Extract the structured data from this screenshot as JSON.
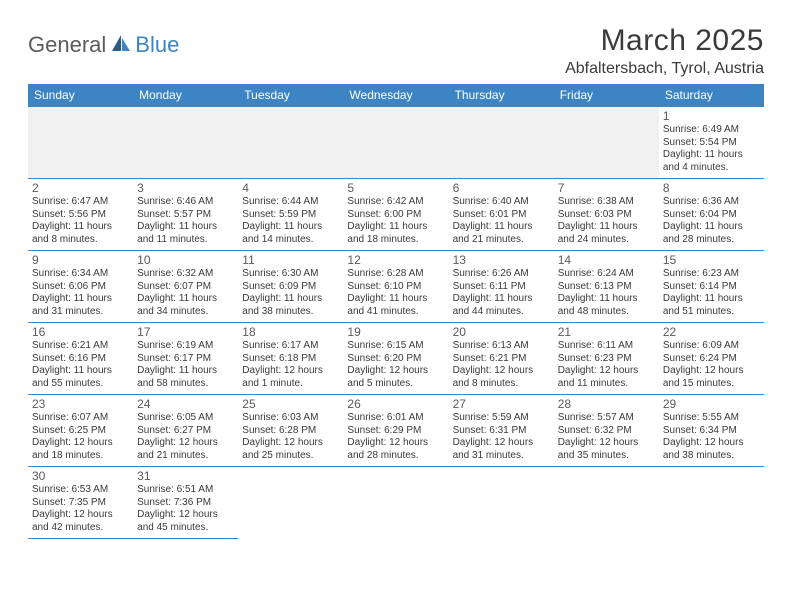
{
  "logo": {
    "text_general": "General",
    "text_blue": "Blue"
  },
  "title": "March 2025",
  "location": "Abfaltersbach, Tyrol, Austria",
  "weekday_headers": [
    "Sunday",
    "Monday",
    "Tuesday",
    "Wednesday",
    "Thursday",
    "Friday",
    "Saturday"
  ],
  "colors": {
    "header_bg": "#3d84c4",
    "header_fg": "#ffffff",
    "cell_border": "#3d84c4",
    "empty_bg": "#f0f0f0",
    "text": "#3a3a3a",
    "logo_gray": "#5b5b5b",
    "logo_blue": "#3d84c4"
  },
  "typography": {
    "title_fontsize": 30,
    "location_fontsize": 16,
    "header_fontsize": 12,
    "cell_fontsize": 10,
    "daynum_fontsize": 12
  },
  "leading_empty_cells": 6,
  "days": [
    {
      "n": 1,
      "sunrise": "Sunrise: 6:49 AM",
      "sunset": "Sunset: 5:54 PM",
      "d1": "Daylight: 11 hours",
      "d2": "and 4 minutes."
    },
    {
      "n": 2,
      "sunrise": "Sunrise: 6:47 AM",
      "sunset": "Sunset: 5:56 PM",
      "d1": "Daylight: 11 hours",
      "d2": "and 8 minutes."
    },
    {
      "n": 3,
      "sunrise": "Sunrise: 6:46 AM",
      "sunset": "Sunset: 5:57 PM",
      "d1": "Daylight: 11 hours",
      "d2": "and 11 minutes."
    },
    {
      "n": 4,
      "sunrise": "Sunrise: 6:44 AM",
      "sunset": "Sunset: 5:59 PM",
      "d1": "Daylight: 11 hours",
      "d2": "and 14 minutes."
    },
    {
      "n": 5,
      "sunrise": "Sunrise: 6:42 AM",
      "sunset": "Sunset: 6:00 PM",
      "d1": "Daylight: 11 hours",
      "d2": "and 18 minutes."
    },
    {
      "n": 6,
      "sunrise": "Sunrise: 6:40 AM",
      "sunset": "Sunset: 6:01 PM",
      "d1": "Daylight: 11 hours",
      "d2": "and 21 minutes."
    },
    {
      "n": 7,
      "sunrise": "Sunrise: 6:38 AM",
      "sunset": "Sunset: 6:03 PM",
      "d1": "Daylight: 11 hours",
      "d2": "and 24 minutes."
    },
    {
      "n": 8,
      "sunrise": "Sunrise: 6:36 AM",
      "sunset": "Sunset: 6:04 PM",
      "d1": "Daylight: 11 hours",
      "d2": "and 28 minutes."
    },
    {
      "n": 9,
      "sunrise": "Sunrise: 6:34 AM",
      "sunset": "Sunset: 6:06 PM",
      "d1": "Daylight: 11 hours",
      "d2": "and 31 minutes."
    },
    {
      "n": 10,
      "sunrise": "Sunrise: 6:32 AM",
      "sunset": "Sunset: 6:07 PM",
      "d1": "Daylight: 11 hours",
      "d2": "and 34 minutes."
    },
    {
      "n": 11,
      "sunrise": "Sunrise: 6:30 AM",
      "sunset": "Sunset: 6:09 PM",
      "d1": "Daylight: 11 hours",
      "d2": "and 38 minutes."
    },
    {
      "n": 12,
      "sunrise": "Sunrise: 6:28 AM",
      "sunset": "Sunset: 6:10 PM",
      "d1": "Daylight: 11 hours",
      "d2": "and 41 minutes."
    },
    {
      "n": 13,
      "sunrise": "Sunrise: 6:26 AM",
      "sunset": "Sunset: 6:11 PM",
      "d1": "Daylight: 11 hours",
      "d2": "and 44 minutes."
    },
    {
      "n": 14,
      "sunrise": "Sunrise: 6:24 AM",
      "sunset": "Sunset: 6:13 PM",
      "d1": "Daylight: 11 hours",
      "d2": "and 48 minutes."
    },
    {
      "n": 15,
      "sunrise": "Sunrise: 6:23 AM",
      "sunset": "Sunset: 6:14 PM",
      "d1": "Daylight: 11 hours",
      "d2": "and 51 minutes."
    },
    {
      "n": 16,
      "sunrise": "Sunrise: 6:21 AM",
      "sunset": "Sunset: 6:16 PM",
      "d1": "Daylight: 11 hours",
      "d2": "and 55 minutes."
    },
    {
      "n": 17,
      "sunrise": "Sunrise: 6:19 AM",
      "sunset": "Sunset: 6:17 PM",
      "d1": "Daylight: 11 hours",
      "d2": "and 58 minutes."
    },
    {
      "n": 18,
      "sunrise": "Sunrise: 6:17 AM",
      "sunset": "Sunset: 6:18 PM",
      "d1": "Daylight: 12 hours",
      "d2": "and 1 minute."
    },
    {
      "n": 19,
      "sunrise": "Sunrise: 6:15 AM",
      "sunset": "Sunset: 6:20 PM",
      "d1": "Daylight: 12 hours",
      "d2": "and 5 minutes."
    },
    {
      "n": 20,
      "sunrise": "Sunrise: 6:13 AM",
      "sunset": "Sunset: 6:21 PM",
      "d1": "Daylight: 12 hours",
      "d2": "and 8 minutes."
    },
    {
      "n": 21,
      "sunrise": "Sunrise: 6:11 AM",
      "sunset": "Sunset: 6:23 PM",
      "d1": "Daylight: 12 hours",
      "d2": "and 11 minutes."
    },
    {
      "n": 22,
      "sunrise": "Sunrise: 6:09 AM",
      "sunset": "Sunset: 6:24 PM",
      "d1": "Daylight: 12 hours",
      "d2": "and 15 minutes."
    },
    {
      "n": 23,
      "sunrise": "Sunrise: 6:07 AM",
      "sunset": "Sunset: 6:25 PM",
      "d1": "Daylight: 12 hours",
      "d2": "and 18 minutes."
    },
    {
      "n": 24,
      "sunrise": "Sunrise: 6:05 AM",
      "sunset": "Sunset: 6:27 PM",
      "d1": "Daylight: 12 hours",
      "d2": "and 21 minutes."
    },
    {
      "n": 25,
      "sunrise": "Sunrise: 6:03 AM",
      "sunset": "Sunset: 6:28 PM",
      "d1": "Daylight: 12 hours",
      "d2": "and 25 minutes."
    },
    {
      "n": 26,
      "sunrise": "Sunrise: 6:01 AM",
      "sunset": "Sunset: 6:29 PM",
      "d1": "Daylight: 12 hours",
      "d2": "and 28 minutes."
    },
    {
      "n": 27,
      "sunrise": "Sunrise: 5:59 AM",
      "sunset": "Sunset: 6:31 PM",
      "d1": "Daylight: 12 hours",
      "d2": "and 31 minutes."
    },
    {
      "n": 28,
      "sunrise": "Sunrise: 5:57 AM",
      "sunset": "Sunset: 6:32 PM",
      "d1": "Daylight: 12 hours",
      "d2": "and 35 minutes."
    },
    {
      "n": 29,
      "sunrise": "Sunrise: 5:55 AM",
      "sunset": "Sunset: 6:34 PM",
      "d1": "Daylight: 12 hours",
      "d2": "and 38 minutes."
    },
    {
      "n": 30,
      "sunrise": "Sunrise: 6:53 AM",
      "sunset": "Sunset: 7:35 PM",
      "d1": "Daylight: 12 hours",
      "d2": "and 42 minutes."
    },
    {
      "n": 31,
      "sunrise": "Sunrise: 6:51 AM",
      "sunset": "Sunset: 7:36 PM",
      "d1": "Daylight: 12 hours",
      "d2": "and 45 minutes."
    }
  ]
}
